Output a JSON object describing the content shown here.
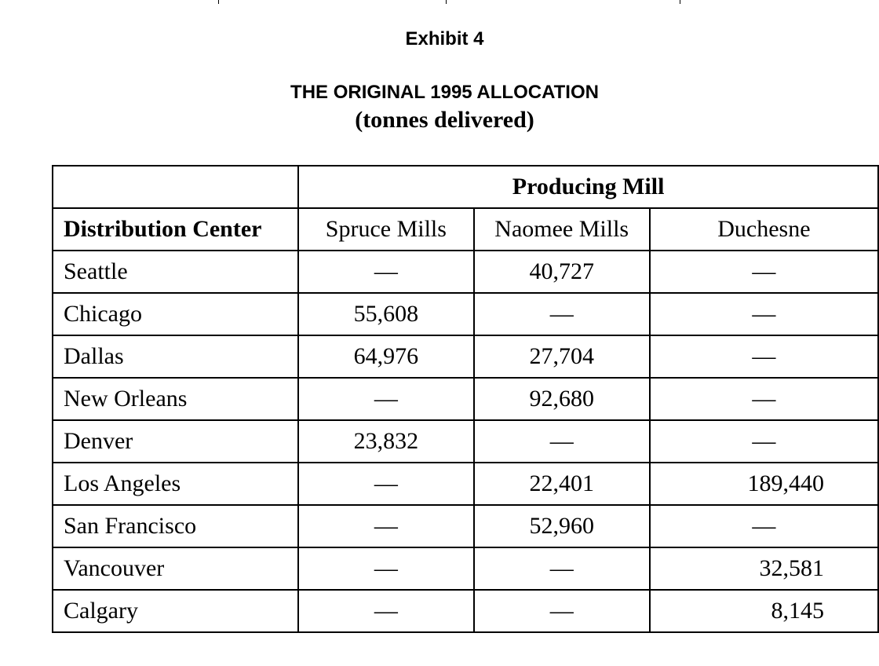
{
  "header": {
    "exhibit": "Exhibit 4",
    "title": "THE ORIGINAL 1995 ALLOCATION",
    "subtitle": "(tonnes delivered)"
  },
  "table": {
    "group_header": "Producing Mill",
    "row_header": "Distribution Center",
    "columns": [
      "Spruce Mills",
      "Naomee Mills",
      "Duchesne"
    ],
    "rows": [
      {
        "center": "Seattle",
        "values": [
          "—",
          "40,727",
          "—"
        ]
      },
      {
        "center": "Chicago",
        "values": [
          "55,608",
          "—",
          "—"
        ]
      },
      {
        "center": "Dallas",
        "values": [
          "64,976",
          "27,704",
          "—"
        ]
      },
      {
        "center": "New Orleans",
        "values": [
          "—",
          "92,680",
          "—"
        ]
      },
      {
        "center": "Denver",
        "values": [
          "23,832",
          "—",
          "—"
        ]
      },
      {
        "center": "Los Angeles",
        "values": [
          "—",
          "22,401",
          "189,440"
        ]
      },
      {
        "center": "San Francisco",
        "values": [
          "—",
          "52,960",
          "—"
        ]
      },
      {
        "center": "Vancouver",
        "values": [
          "—",
          "—",
          "32,581"
        ]
      },
      {
        "center": "Calgary",
        "values": [
          "—",
          "—",
          "8,145"
        ]
      }
    ]
  }
}
